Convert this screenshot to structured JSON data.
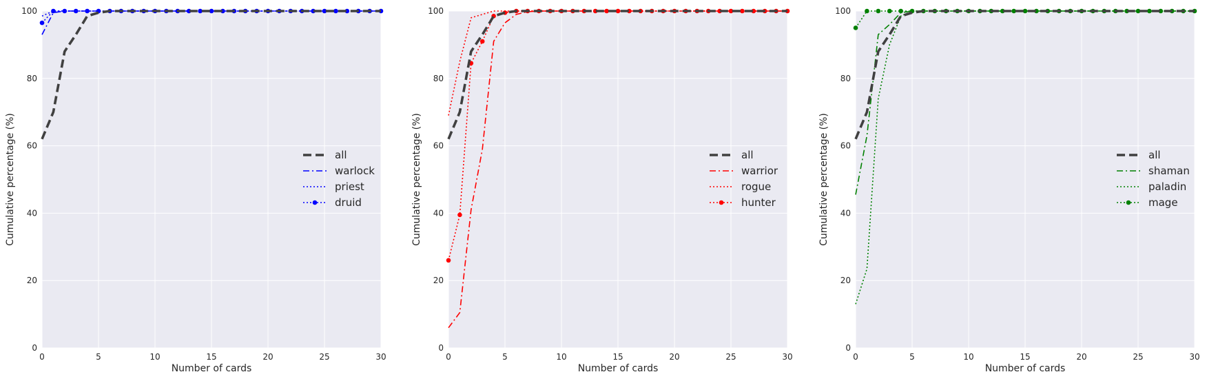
{
  "chart_data": [
    {
      "type": "line",
      "xlabel": "Number of cards",
      "ylabel": "Cumulative percentage (%)",
      "xlim": [
        0,
        30
      ],
      "ylim": [
        0,
        100
      ],
      "xticks": [
        0,
        5,
        10,
        15,
        20,
        25,
        30
      ],
      "yticks": [
        0,
        20,
        40,
        60,
        80,
        100
      ],
      "xtick_labels": [
        "0",
        "5",
        "10",
        "15",
        "20",
        "25",
        "30"
      ],
      "ytick_labels": [
        "0",
        "20",
        "40",
        "60",
        "80",
        "100"
      ],
      "grid": true,
      "legend_position": "center-right",
      "series": [
        {
          "name": "all",
          "color": "#404040",
          "style": "dashed-thick",
          "x": [
            0,
            1,
            2,
            3,
            4,
            5,
            6,
            8,
            10,
            15,
            20,
            25,
            30
          ],
          "y": [
            62,
            70,
            88,
            93,
            98.5,
            99.5,
            100,
            100,
            100,
            100,
            100,
            100,
            100
          ]
        },
        {
          "name": "warlock",
          "color": "#0000ff",
          "style": "dashdot",
          "x": [
            0,
            1,
            2,
            5,
            10,
            15,
            20,
            25,
            30
          ],
          "y": [
            93,
            99.5,
            100,
            100,
            100,
            100,
            100,
            100,
            100
          ]
        },
        {
          "name": "priest",
          "color": "#0000ff",
          "style": "dotted",
          "x": [
            0,
            1,
            2,
            5,
            10,
            15,
            20,
            25,
            30
          ],
          "y": [
            98.5,
            100,
            100,
            100,
            100,
            100,
            100,
            100,
            100
          ]
        },
        {
          "name": "druid",
          "color": "#0000ff",
          "style": "dotted-marker",
          "x": [
            0,
            1,
            2,
            3,
            4,
            5,
            6,
            7,
            8,
            9,
            10,
            11,
            12,
            13,
            14,
            15,
            16,
            17,
            18,
            19,
            20,
            21,
            22,
            23,
            24,
            25,
            26,
            27,
            28,
            29,
            30
          ],
          "y": [
            96.5,
            100,
            100,
            100,
            100,
            100,
            100,
            100,
            100,
            100,
            100,
            100,
            100,
            100,
            100,
            100,
            100,
            100,
            100,
            100,
            100,
            100,
            100,
            100,
            100,
            100,
            100,
            100,
            100,
            100,
            100
          ]
        }
      ]
    },
    {
      "type": "line",
      "xlabel": "Number of cards",
      "ylabel": "Cumulative percentage (%)",
      "xlim": [
        0,
        30
      ],
      "ylim": [
        0,
        100
      ],
      "xticks": [
        0,
        5,
        10,
        15,
        20,
        25,
        30
      ],
      "yticks": [
        0,
        20,
        40,
        60,
        80,
        100
      ],
      "xtick_labels": [
        "0",
        "5",
        "10",
        "15",
        "20",
        "25",
        "30"
      ],
      "ytick_labels": [
        "0",
        "20",
        "40",
        "60",
        "80",
        "100"
      ],
      "grid": true,
      "legend_position": "center-right",
      "series": [
        {
          "name": "all",
          "color": "#404040",
          "style": "dashed-thick",
          "x": [
            0,
            1,
            2,
            3,
            4,
            5,
            6,
            8,
            10,
            15,
            20,
            25,
            30
          ],
          "y": [
            62,
            70,
            88,
            93,
            98.5,
            99.5,
            100,
            100,
            100,
            100,
            100,
            100,
            100
          ]
        },
        {
          "name": "warrior",
          "color": "#ff0000",
          "style": "dashdot",
          "x": [
            0,
            1,
            2,
            3,
            4,
            5,
            6,
            7,
            8,
            10,
            15,
            20,
            25,
            30
          ],
          "y": [
            6,
            10.5,
            41,
            59,
            91,
            96.5,
            99,
            99.8,
            100,
            100,
            100,
            100,
            100,
            100
          ]
        },
        {
          "name": "rogue",
          "color": "#ff0000",
          "style": "dotted",
          "x": [
            0,
            1,
            2,
            3,
            4,
            5,
            6,
            10,
            15,
            20,
            25,
            30
          ],
          "y": [
            69,
            85,
            98,
            99,
            100,
            100,
            100,
            100,
            100,
            100,
            100,
            100
          ]
        },
        {
          "name": "hunter",
          "color": "#ff0000",
          "style": "dotted-marker",
          "x": [
            0,
            1,
            2,
            3,
            4,
            5,
            6,
            7,
            8,
            9,
            10,
            11,
            12,
            13,
            14,
            15,
            16,
            17,
            18,
            19,
            20,
            21,
            22,
            23,
            24,
            25,
            26,
            27,
            28,
            29,
            30
          ],
          "y": [
            26,
            39.5,
            84.5,
            91,
            98.5,
            99.5,
            100,
            100,
            100,
            100,
            100,
            100,
            100,
            100,
            100,
            100,
            100,
            100,
            100,
            100,
            100,
            100,
            100,
            100,
            100,
            100,
            100,
            100,
            100,
            100,
            100
          ]
        }
      ]
    },
    {
      "type": "line",
      "xlabel": "Number of cards",
      "ylabel": "Cumulative percentage (%)",
      "xlim": [
        0,
        30
      ],
      "ylim": [
        0,
        100
      ],
      "xticks": [
        0,
        5,
        10,
        15,
        20,
        25,
        30
      ],
      "yticks": [
        0,
        20,
        40,
        60,
        80,
        100
      ],
      "xtick_labels": [
        "0",
        "5",
        "10",
        "15",
        "20",
        "25",
        "30"
      ],
      "ytick_labels": [
        "0",
        "20",
        "40",
        "60",
        "80",
        "100"
      ],
      "grid": true,
      "legend_position": "center-right",
      "series": [
        {
          "name": "all",
          "color": "#404040",
          "style": "dashed-thick",
          "x": [
            0,
            1,
            2,
            3,
            4,
            5,
            6,
            8,
            10,
            15,
            20,
            25,
            30
          ],
          "y": [
            62,
            70,
            88,
            93,
            98.5,
            99.5,
            100,
            100,
            100,
            100,
            100,
            100,
            100
          ]
        },
        {
          "name": "shaman",
          "color": "#008000",
          "style": "dashdot",
          "x": [
            0,
            1,
            2,
            3,
            4,
            5,
            6,
            10,
            15,
            20,
            25,
            30
          ],
          "y": [
            45.5,
            63,
            93,
            96,
            99.5,
            100,
            100,
            100,
            100,
            100,
            100,
            100
          ]
        },
        {
          "name": "paladin",
          "color": "#008000",
          "style": "dotted",
          "x": [
            0,
            1,
            2,
            3,
            4,
            5,
            6,
            10,
            15,
            20,
            25,
            30
          ],
          "y": [
            13,
            23.5,
            74,
            90,
            98.5,
            100,
            100,
            100,
            100,
            100,
            100,
            100
          ]
        },
        {
          "name": "mage",
          "color": "#008000",
          "style": "dotted-marker",
          "x": [
            0,
            1,
            2,
            3,
            4,
            5,
            6,
            7,
            8,
            9,
            10,
            11,
            12,
            13,
            14,
            15,
            16,
            17,
            18,
            19,
            20,
            21,
            22,
            23,
            24,
            25,
            26,
            27,
            28,
            29,
            30
          ],
          "y": [
            95,
            100,
            100,
            100,
            100,
            100,
            100,
            100,
            100,
            100,
            100,
            100,
            100,
            100,
            100,
            100,
            100,
            100,
            100,
            100,
            100,
            100,
            100,
            100,
            100,
            100,
            100,
            100,
            100,
            100,
            100
          ]
        }
      ]
    }
  ]
}
